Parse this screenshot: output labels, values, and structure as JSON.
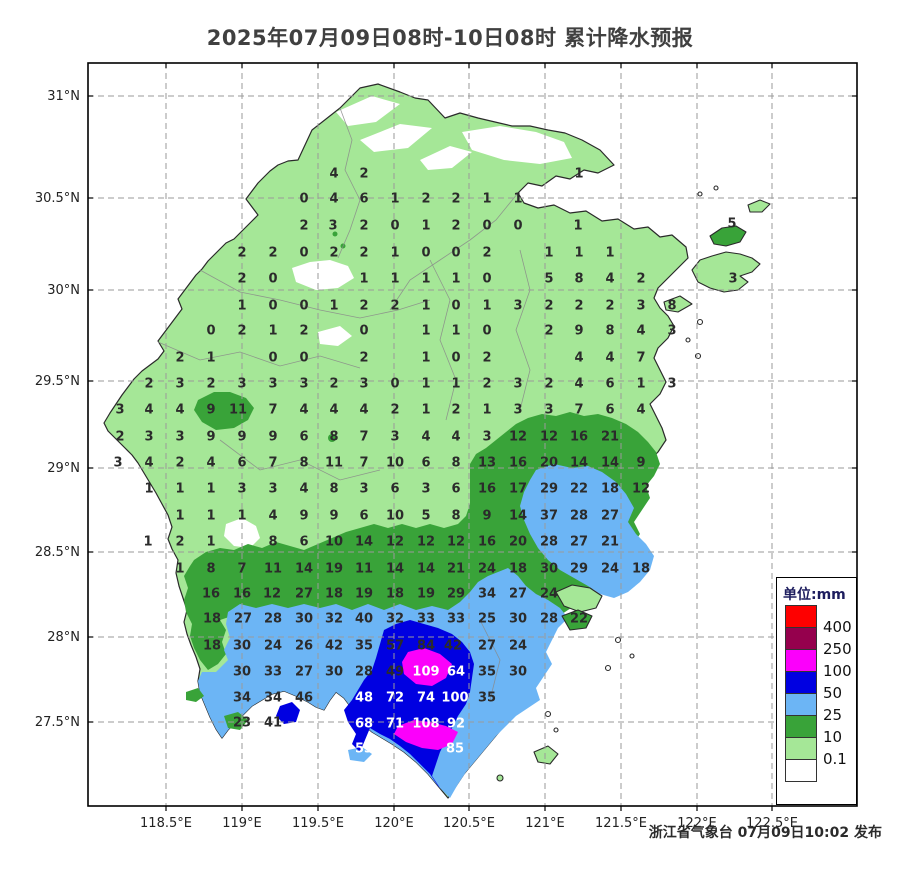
{
  "title": "2025年07月09日08时-10日08时 累计降水预报",
  "attribution": "浙江省气象台 07月09日10:02 发布",
  "legend": {
    "title": "单位:mm",
    "colors": [
      "#fe0000",
      "#95004d",
      "#fb00fb",
      "#0000e1",
      "#6cb5f5",
      "#39a339",
      "#a5e797",
      "#ffffff"
    ],
    "labels": [
      "400",
      "250",
      "100",
      "50",
      "25",
      "10",
      "0.1"
    ]
  },
  "map_colors": {
    "base_land": "#a5e797",
    "rain_10_25": "#39a339",
    "rain_25_50": "#6cb5f5",
    "rain_50_100": "#0000e1",
    "rain_100_250": "#fb00fb",
    "sea": "#ffffff",
    "boundary": "#2a2a2a",
    "grid": "#9a9a9a"
  },
  "chart_data": {
    "type": "heatmap",
    "title": "2025年07月09日08时-10日08时 累计降水预报",
    "unit": "mm",
    "legend_position": "bottom-right",
    "grid": true,
    "x_axis": {
      "labels": [
        "118.5°E",
        "119°E",
        "119.5°E",
        "120°E",
        "120.5°E",
        "121°E",
        "121.5°E",
        "122°E",
        "122.5°E"
      ],
      "px": [
        166,
        242,
        318,
        394,
        469,
        545,
        621,
        697,
        772
      ]
    },
    "y_axis": {
      "labels": [
        "31°N",
        "30.5°N",
        "30°N",
        "29.5°N",
        "29°N",
        "28.5°N",
        "28°N",
        "27.5°N"
      ],
      "px": [
        96,
        198,
        290,
        381,
        468,
        552,
        637,
        722
      ]
    },
    "levels_mm": [
      0.1,
      10,
      25,
      50,
      100,
      250,
      400
    ],
    "cells": [
      [
        334,
        173,
        "4"
      ],
      [
        364,
        173,
        "2"
      ],
      [
        579,
        173,
        "1"
      ],
      [
        304,
        198,
        "0"
      ],
      [
        334,
        198,
        "4"
      ],
      [
        364,
        198,
        "6"
      ],
      [
        395,
        198,
        "1"
      ],
      [
        426,
        198,
        "2"
      ],
      [
        456,
        198,
        "2"
      ],
      [
        487,
        198,
        "1"
      ],
      [
        518,
        198,
        "1"
      ],
      [
        304,
        225,
        "2"
      ],
      [
        333,
        225,
        "3"
      ],
      [
        364,
        225,
        "2"
      ],
      [
        395,
        225,
        "0"
      ],
      [
        426,
        225,
        "1"
      ],
      [
        456,
        225,
        "2"
      ],
      [
        487,
        225,
        "0"
      ],
      [
        518,
        225,
        "0"
      ],
      [
        578,
        225,
        "1"
      ],
      [
        732,
        223,
        "5"
      ],
      [
        242,
        252,
        "2"
      ],
      [
        273,
        252,
        "2"
      ],
      [
        304,
        252,
        "0"
      ],
      [
        334,
        252,
        "2"
      ],
      [
        364,
        252,
        "2"
      ],
      [
        395,
        252,
        "1"
      ],
      [
        426,
        252,
        "0"
      ],
      [
        456,
        252,
        "0"
      ],
      [
        487,
        252,
        "2"
      ],
      [
        549,
        252,
        "1"
      ],
      [
        579,
        252,
        "1"
      ],
      [
        610,
        252,
        "1"
      ],
      [
        242,
        278,
        "2"
      ],
      [
        273,
        278,
        "0"
      ],
      [
        364,
        278,
        "1"
      ],
      [
        395,
        278,
        "1"
      ],
      [
        426,
        278,
        "1"
      ],
      [
        456,
        278,
        "1"
      ],
      [
        487,
        278,
        "0"
      ],
      [
        549,
        278,
        "5"
      ],
      [
        579,
        278,
        "8"
      ],
      [
        610,
        278,
        "4"
      ],
      [
        641,
        278,
        "2"
      ],
      [
        733,
        278,
        "3"
      ],
      [
        242,
        305,
        "1"
      ],
      [
        273,
        305,
        "0"
      ],
      [
        304,
        305,
        "0"
      ],
      [
        334,
        305,
        "1"
      ],
      [
        364,
        305,
        "2"
      ],
      [
        395,
        305,
        "2"
      ],
      [
        426,
        305,
        "1"
      ],
      [
        456,
        305,
        "0"
      ],
      [
        487,
        305,
        "1"
      ],
      [
        518,
        305,
        "3"
      ],
      [
        549,
        305,
        "2"
      ],
      [
        579,
        305,
        "2"
      ],
      [
        610,
        305,
        "2"
      ],
      [
        641,
        305,
        "3"
      ],
      [
        672,
        305,
        "8"
      ],
      [
        211,
        330,
        "0"
      ],
      [
        242,
        330,
        "2"
      ],
      [
        273,
        330,
        "1"
      ],
      [
        304,
        330,
        "2"
      ],
      [
        364,
        330,
        "0"
      ],
      [
        426,
        330,
        "1"
      ],
      [
        456,
        330,
        "1"
      ],
      [
        487,
        330,
        "0"
      ],
      [
        549,
        330,
        "2"
      ],
      [
        579,
        330,
        "9"
      ],
      [
        610,
        330,
        "8"
      ],
      [
        641,
        330,
        "4"
      ],
      [
        672,
        330,
        "3"
      ],
      [
        180,
        357,
        "2"
      ],
      [
        211,
        357,
        "1"
      ],
      [
        273,
        357,
        "0"
      ],
      [
        304,
        357,
        "0"
      ],
      [
        364,
        357,
        "2"
      ],
      [
        426,
        357,
        "1"
      ],
      [
        456,
        357,
        "0"
      ],
      [
        487,
        357,
        "2"
      ],
      [
        579,
        357,
        "4"
      ],
      [
        610,
        357,
        "4"
      ],
      [
        641,
        357,
        "7"
      ],
      [
        149,
        383,
        "2"
      ],
      [
        180,
        383,
        "3"
      ],
      [
        211,
        383,
        "2"
      ],
      [
        242,
        383,
        "3"
      ],
      [
        273,
        383,
        "3"
      ],
      [
        304,
        383,
        "3"
      ],
      [
        334,
        383,
        "2"
      ],
      [
        364,
        383,
        "3"
      ],
      [
        395,
        383,
        "0"
      ],
      [
        426,
        383,
        "1"
      ],
      [
        456,
        383,
        "1"
      ],
      [
        487,
        383,
        "2"
      ],
      [
        518,
        383,
        "3"
      ],
      [
        549,
        383,
        "2"
      ],
      [
        579,
        383,
        "4"
      ],
      [
        610,
        383,
        "6"
      ],
      [
        641,
        383,
        "1"
      ],
      [
        672,
        383,
        "3"
      ],
      [
        120,
        409,
        "3"
      ],
      [
        149,
        409,
        "4"
      ],
      [
        180,
        409,
        "4"
      ],
      [
        211,
        409,
        "9"
      ],
      [
        238,
        409,
        "11"
      ],
      [
        273,
        409,
        "7"
      ],
      [
        304,
        409,
        "4"
      ],
      [
        334,
        409,
        "4"
      ],
      [
        364,
        409,
        "4"
      ],
      [
        395,
        409,
        "2"
      ],
      [
        426,
        409,
        "1"
      ],
      [
        456,
        409,
        "2"
      ],
      [
        487,
        409,
        "1"
      ],
      [
        518,
        409,
        "3"
      ],
      [
        549,
        409,
        "3"
      ],
      [
        579,
        409,
        "7"
      ],
      [
        610,
        409,
        "6"
      ],
      [
        641,
        409,
        "4"
      ],
      [
        120,
        436,
        "2"
      ],
      [
        149,
        436,
        "3"
      ],
      [
        180,
        436,
        "3"
      ],
      [
        211,
        436,
        "9"
      ],
      [
        242,
        436,
        "9"
      ],
      [
        273,
        436,
        "9"
      ],
      [
        304,
        436,
        "6"
      ],
      [
        334,
        436,
        "8"
      ],
      [
        364,
        436,
        "7"
      ],
      [
        395,
        436,
        "3"
      ],
      [
        426,
        436,
        "4"
      ],
      [
        456,
        436,
        "4"
      ],
      [
        487,
        436,
        "3"
      ],
      [
        518,
        436,
        "12"
      ],
      [
        549,
        436,
        "12"
      ],
      [
        579,
        436,
        "16"
      ],
      [
        610,
        436,
        "21"
      ],
      [
        118,
        462,
        "3"
      ],
      [
        149,
        462,
        "4"
      ],
      [
        180,
        462,
        "2"
      ],
      [
        211,
        462,
        "4"
      ],
      [
        242,
        462,
        "6"
      ],
      [
        273,
        462,
        "7"
      ],
      [
        304,
        462,
        "8"
      ],
      [
        334,
        462,
        "11"
      ],
      [
        364,
        462,
        "7"
      ],
      [
        395,
        462,
        "10"
      ],
      [
        426,
        462,
        "6"
      ],
      [
        456,
        462,
        "8"
      ],
      [
        487,
        462,
        "13"
      ],
      [
        518,
        462,
        "16"
      ],
      [
        549,
        462,
        "20"
      ],
      [
        579,
        462,
        "14"
      ],
      [
        610,
        462,
        "14"
      ],
      [
        641,
        462,
        "9"
      ],
      [
        149,
        488,
        "1"
      ],
      [
        180,
        488,
        "1"
      ],
      [
        211,
        488,
        "1"
      ],
      [
        242,
        488,
        "3"
      ],
      [
        273,
        488,
        "3"
      ],
      [
        304,
        488,
        "4"
      ],
      [
        334,
        488,
        "8"
      ],
      [
        364,
        488,
        "3"
      ],
      [
        395,
        488,
        "6"
      ],
      [
        426,
        488,
        "3"
      ],
      [
        456,
        488,
        "6"
      ],
      [
        487,
        488,
        "16"
      ],
      [
        518,
        488,
        "17"
      ],
      [
        549,
        488,
        "29"
      ],
      [
        579,
        488,
        "22"
      ],
      [
        610,
        488,
        "18"
      ],
      [
        641,
        488,
        "12"
      ],
      [
        180,
        515,
        "1"
      ],
      [
        211,
        515,
        "1"
      ],
      [
        242,
        515,
        "1"
      ],
      [
        273,
        515,
        "4"
      ],
      [
        304,
        515,
        "9"
      ],
      [
        334,
        515,
        "9"
      ],
      [
        364,
        515,
        "6"
      ],
      [
        395,
        515,
        "10"
      ],
      [
        426,
        515,
        "5"
      ],
      [
        456,
        515,
        "8"
      ],
      [
        487,
        515,
        "9"
      ],
      [
        518,
        515,
        "14"
      ],
      [
        549,
        515,
        "37"
      ],
      [
        579,
        515,
        "28"
      ],
      [
        610,
        515,
        "27"
      ],
      [
        148,
        541,
        "1"
      ],
      [
        180,
        541,
        "2"
      ],
      [
        211,
        541,
        "1"
      ],
      [
        273,
        541,
        "8"
      ],
      [
        304,
        541,
        "6"
      ],
      [
        334,
        541,
        "10"
      ],
      [
        364,
        541,
        "14"
      ],
      [
        395,
        541,
        "12"
      ],
      [
        426,
        541,
        "12"
      ],
      [
        456,
        541,
        "12"
      ],
      [
        487,
        541,
        "16"
      ],
      [
        518,
        541,
        "20"
      ],
      [
        549,
        541,
        "28"
      ],
      [
        579,
        541,
        "27"
      ],
      [
        610,
        541,
        "21"
      ],
      [
        180,
        568,
        "1"
      ],
      [
        211,
        568,
        "8"
      ],
      [
        242,
        568,
        "7"
      ],
      [
        273,
        568,
        "11"
      ],
      [
        304,
        568,
        "14"
      ],
      [
        334,
        568,
        "19"
      ],
      [
        364,
        568,
        "11"
      ],
      [
        395,
        568,
        "14"
      ],
      [
        426,
        568,
        "14"
      ],
      [
        456,
        568,
        "21"
      ],
      [
        487,
        568,
        "24"
      ],
      [
        518,
        568,
        "18"
      ],
      [
        549,
        568,
        "30"
      ],
      [
        579,
        568,
        "29"
      ],
      [
        610,
        568,
        "24"
      ],
      [
        641,
        568,
        "18"
      ],
      [
        211,
        593,
        "16"
      ],
      [
        242,
        593,
        "16"
      ],
      [
        272,
        593,
        "12"
      ],
      [
        304,
        593,
        "27"
      ],
      [
        334,
        593,
        "18"
      ],
      [
        364,
        593,
        "19"
      ],
      [
        395,
        593,
        "18"
      ],
      [
        426,
        593,
        "19"
      ],
      [
        456,
        593,
        "29"
      ],
      [
        487,
        593,
        "34"
      ],
      [
        518,
        593,
        "27"
      ],
      [
        549,
        593,
        "24"
      ],
      [
        212,
        618,
        "18"
      ],
      [
        243,
        618,
        "27"
      ],
      [
        273,
        618,
        "28"
      ],
      [
        304,
        618,
        "30"
      ],
      [
        334,
        618,
        "32"
      ],
      [
        364,
        618,
        "40"
      ],
      [
        395,
        618,
        "32"
      ],
      [
        426,
        618,
        "33"
      ],
      [
        456,
        618,
        "33"
      ],
      [
        487,
        618,
        "25"
      ],
      [
        518,
        618,
        "30"
      ],
      [
        549,
        618,
        "28"
      ],
      [
        579,
        618,
        "22"
      ],
      [
        212,
        645,
        "18"
      ],
      [
        242,
        645,
        "30"
      ],
      [
        273,
        645,
        "24"
      ],
      [
        304,
        645,
        "26"
      ],
      [
        334,
        645,
        "42"
      ],
      [
        364,
        645,
        "35"
      ],
      [
        395,
        645,
        "57"
      ],
      [
        426,
        645,
        "84"
      ],
      [
        453,
        645,
        "42"
      ],
      [
        487,
        645,
        "27"
      ],
      [
        518,
        645,
        "24"
      ],
      [
        242,
        671,
        "30"
      ],
      [
        273,
        671,
        "33"
      ],
      [
        304,
        671,
        "27"
      ],
      [
        334,
        671,
        "30"
      ],
      [
        364,
        671,
        "28"
      ],
      [
        395,
        671,
        "49"
      ],
      [
        426,
        671,
        "109",
        1
      ],
      [
        456,
        671,
        "64",
        1
      ],
      [
        487,
        671,
        "35"
      ],
      [
        518,
        671,
        "30"
      ],
      [
        242,
        697,
        "34"
      ],
      [
        273,
        697,
        "34"
      ],
      [
        304,
        697,
        "46"
      ],
      [
        364,
        697,
        "48",
        1
      ],
      [
        395,
        697,
        "72",
        1
      ],
      [
        426,
        697,
        "74",
        1
      ],
      [
        455,
        697,
        "100",
        1
      ],
      [
        487,
        697,
        "35"
      ],
      [
        242,
        722,
        "23"
      ],
      [
        273,
        722,
        "41"
      ],
      [
        364,
        723,
        "68",
        1
      ],
      [
        395,
        723,
        "71",
        1
      ],
      [
        426,
        723,
        "108",
        1
      ],
      [
        456,
        723,
        "92",
        1
      ],
      [
        364,
        748,
        "53",
        1
      ],
      [
        455,
        748,
        "85",
        1
      ]
    ]
  }
}
